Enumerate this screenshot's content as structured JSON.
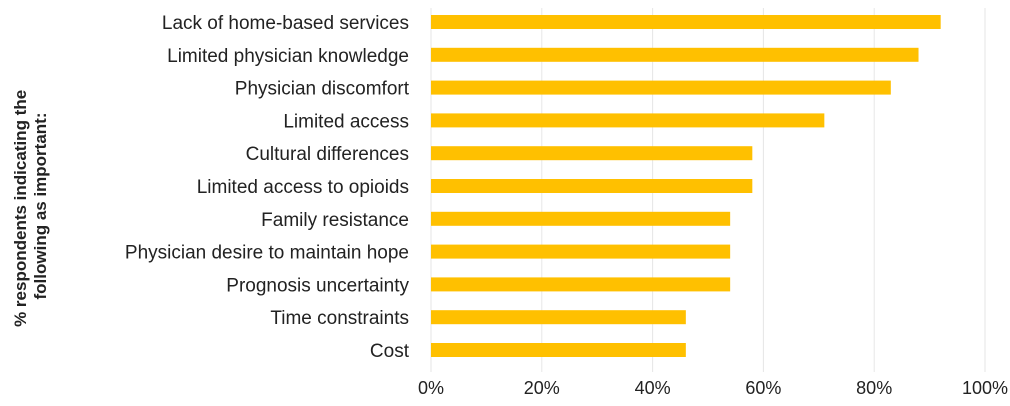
{
  "chart_data": {
    "type": "bar",
    "orientation": "horizontal",
    "categories": [
      "Lack of home-based services",
      "Limited physician knowledge",
      "Physician discomfort",
      "Limited access",
      "Cultural differences",
      "Limited access to opioids",
      "Family resistance",
      "Physician desire to maintain hope",
      "Prognosis uncertainty",
      "Time constraints",
      "Cost"
    ],
    "values": [
      92,
      88,
      83,
      71,
      58,
      58,
      54,
      54,
      54,
      46,
      46
    ],
    "xlabel": "",
    "ylabel_lines": [
      "% respondents indicating the",
      "following as important:"
    ],
    "xlim": [
      0,
      100
    ],
    "xticks": [
      0,
      20,
      40,
      60,
      80,
      100
    ],
    "xtick_labels": [
      "0%",
      "20%",
      "40%",
      "60%",
      "80%",
      "100%"
    ],
    "grid": "vertical",
    "legend": "none",
    "colors": {
      "bar": "#FFC000",
      "grid": "#E6E6E6",
      "text": "#222222"
    }
  }
}
